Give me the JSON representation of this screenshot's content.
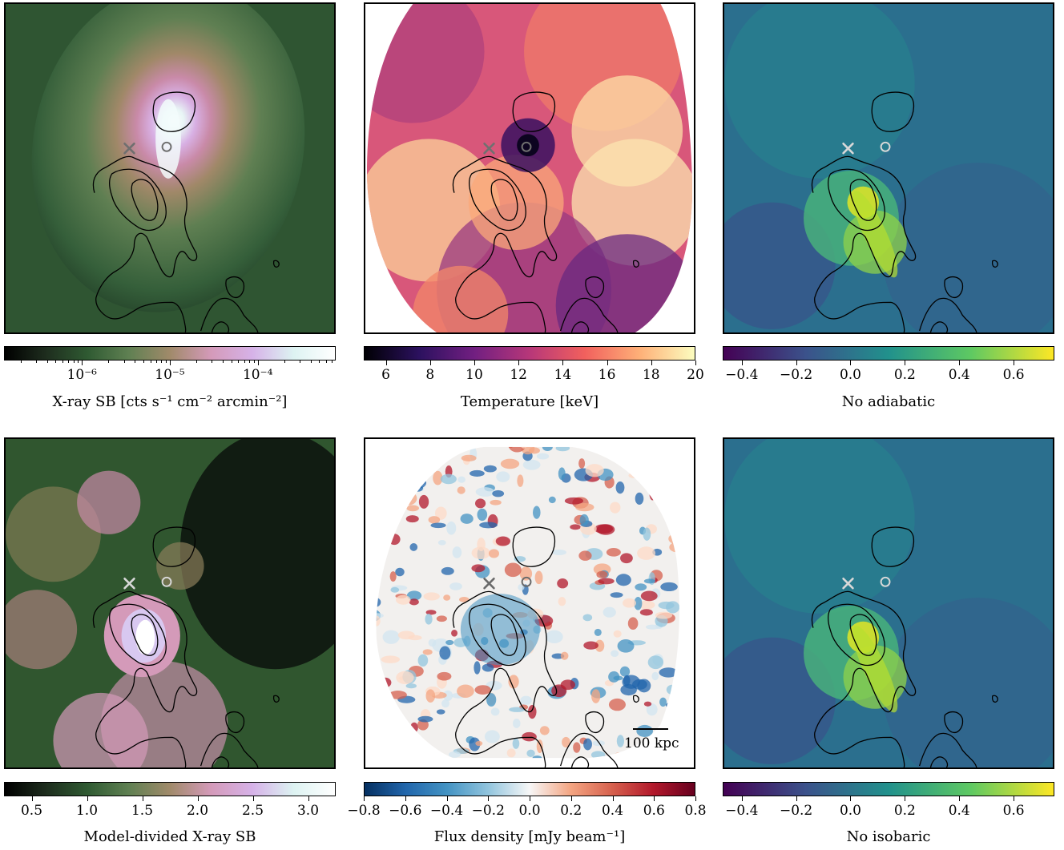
{
  "panels": [
    {
      "id": "xray",
      "colorbar": {
        "label": "X-ray SB [cts s⁻¹ cm⁻² arcmin⁻²]",
        "scale": "log",
        "ticks": [
          "10⁻⁶",
          "10⁻⁵",
          "10⁻⁴"
        ],
        "colors": [
          "#000000",
          "#1e2d1e",
          "#2f5a32",
          "#5f8052",
          "#a08a6a",
          "#d49ab9",
          "#d6b2e8",
          "#ddf3f2",
          "#ffffff"
        ]
      }
    },
    {
      "id": "temperature",
      "colorbar": {
        "label": "Temperature [keV]",
        "ticks": [
          "6",
          "8",
          "10",
          "12",
          "14",
          "16",
          "18",
          "20"
        ],
        "range": [
          5,
          20
        ],
        "colors": [
          "#000004",
          "#2c115f",
          "#721f81",
          "#b73779",
          "#f1605d",
          "#feb078",
          "#fcfdbf"
        ]
      }
    },
    {
      "id": "no-adiabatic",
      "colorbar": {
        "label": "No adiabatic",
        "ticks": [
          "−0.4",
          "−0.2",
          "0.0",
          "0.2",
          "0.4",
          "0.6"
        ],
        "range": [
          -0.47,
          0.75
        ],
        "colors": [
          "#440154",
          "#3b528b",
          "#21918c",
          "#5ec962",
          "#fde725"
        ]
      }
    },
    {
      "id": "model-divided",
      "colorbar": {
        "label": "Model-divided X-ray SB",
        "ticks": [
          "0.5",
          "1.0",
          "1.5",
          "2.0",
          "2.5",
          "3.0"
        ],
        "range": [
          0.25,
          3.25
        ],
        "colors": [
          "#000000",
          "#1e2d1e",
          "#2f5a32",
          "#5f8052",
          "#a08a6a",
          "#d49ab9",
          "#d6b2e8",
          "#ddf3f2",
          "#ffffff"
        ]
      }
    },
    {
      "id": "flux",
      "colorbar": {
        "label": "Flux density [mJy beam⁻¹]",
        "ticks": [
          "−0.8",
          "−0.6",
          "−0.4",
          "−0.2",
          "0.0",
          "0.2",
          "0.4",
          "0.6",
          "0.8"
        ],
        "range": [
          -0.8,
          0.8
        ],
        "colors": [
          "#053061",
          "#2166ac",
          "#4393c3",
          "#92c5de",
          "#f7f7f7",
          "#f4a582",
          "#d6604d",
          "#b2182b",
          "#67001f"
        ]
      },
      "scalebar": "100 kpc"
    },
    {
      "id": "no-isobaric",
      "colorbar": {
        "label": "No isobaric",
        "ticks": [
          "−0.4",
          "−0.2",
          "0.0",
          "0.2",
          "0.4",
          "0.6"
        ],
        "range": [
          -0.47,
          0.75
        ],
        "colors": [
          "#440154",
          "#3b528b",
          "#21918c",
          "#5ec962",
          "#fde725"
        ]
      }
    }
  ]
}
